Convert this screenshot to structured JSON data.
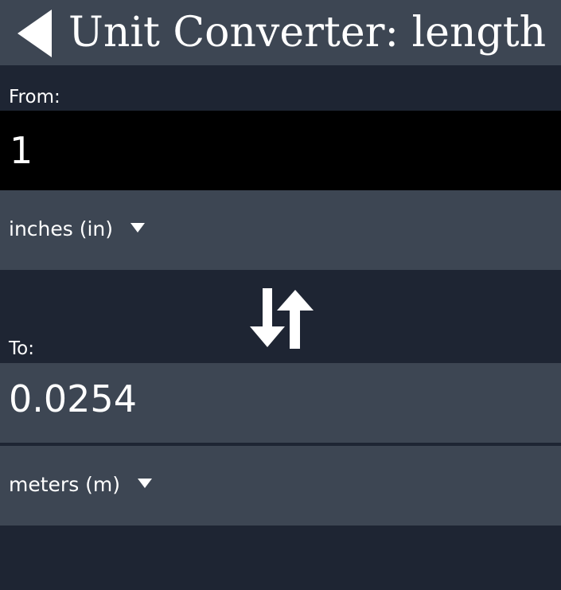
{
  "header": {
    "title": "Unit Converter: length",
    "back_icon": "back-arrow-icon"
  },
  "from": {
    "label": "From:",
    "value": "1",
    "unit": "inches (in)"
  },
  "swap": {
    "icon": "swap-arrows-icon"
  },
  "to": {
    "label": "To:",
    "value": "0.0254",
    "unit": "meters (m)"
  },
  "colors": {
    "background": "#1e2533",
    "panel": "#3d4653",
    "input_background": "#000000",
    "text": "#ffffff"
  }
}
